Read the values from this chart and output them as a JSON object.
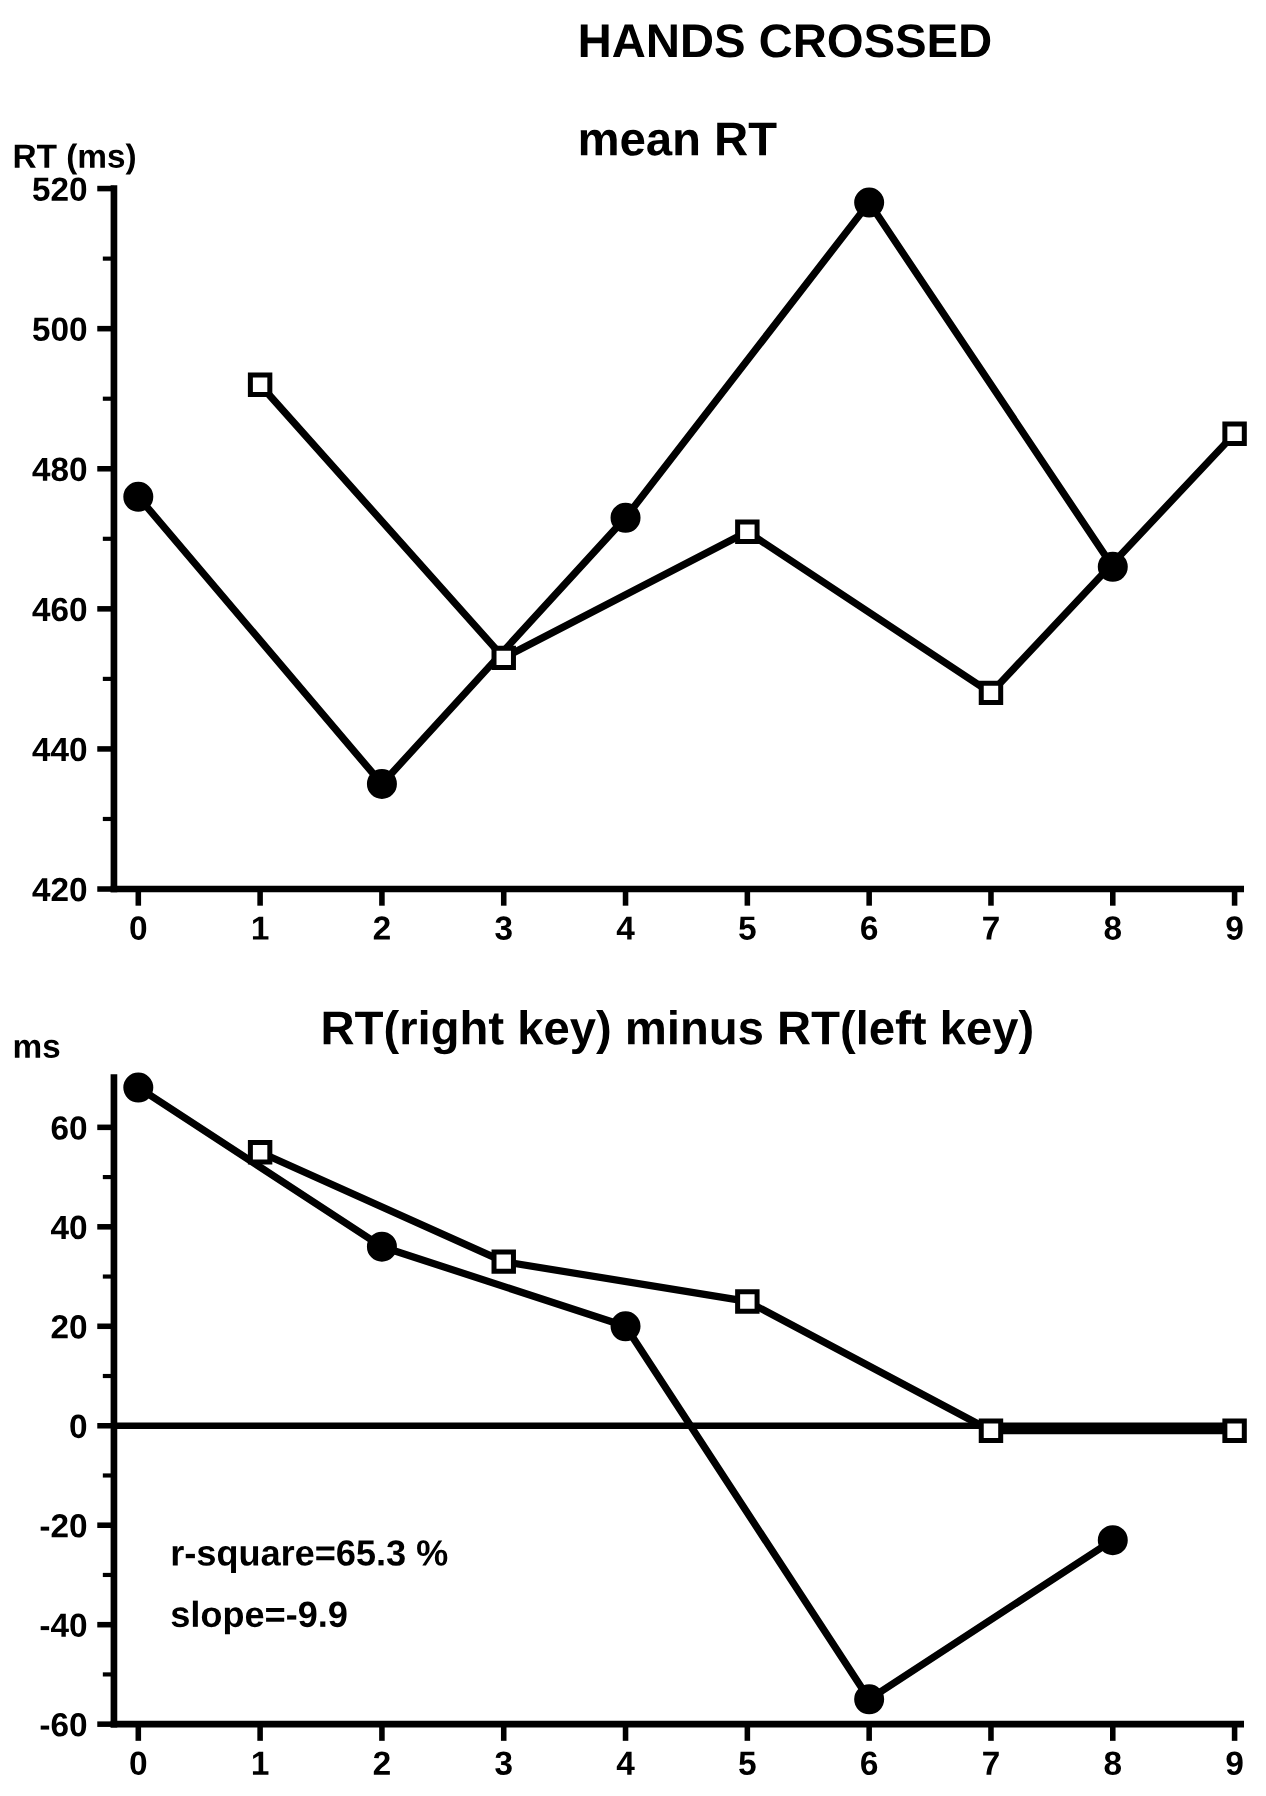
{
  "chart_data": [
    {
      "type": "line",
      "title": "mean RT",
      "ylabel": "RT (ms)",
      "annotations": [
        "HANDS CROSSED"
      ],
      "xlim": [
        -0.2,
        9.05
      ],
      "xticks": [
        0,
        1,
        2,
        3,
        4,
        5,
        6,
        7,
        8,
        9
      ],
      "ylim": [
        420,
        520
      ],
      "yticks": [
        420,
        440,
        460,
        480,
        500,
        520
      ],
      "grid": false,
      "legend": false,
      "series": [
        {
          "color": "#000000",
          "marker": "circle",
          "x": [
            0,
            2,
            4,
            6,
            8
          ],
          "values": [
            476,
            435,
            473,
            518,
            466
          ]
        },
        {
          "color": "#000000",
          "marker": "square",
          "x": [
            1,
            3,
            5,
            7,
            9
          ],
          "values": [
            492,
            453,
            471,
            448,
            485
          ]
        }
      ]
    },
    {
      "type": "line",
      "title": "RT(right key) minus RT(left key)",
      "ylabel": "ms",
      "annotations": [
        "r-square=65.3 %",
        "slope=-9.9"
      ],
      "xlim": [
        -0.2,
        9.05
      ],
      "xticks": [
        0,
        1,
        2,
        3,
        4,
        5,
        6,
        7,
        8,
        9
      ],
      "ylim": [
        -60,
        70
      ],
      "yticks": [
        -60,
        -40,
        -20,
        0,
        20,
        40,
        60
      ],
      "grid": false,
      "legend": false,
      "ref_lines": [
        {
          "axis": "y",
          "value": 0,
          "color": "#000000"
        }
      ],
      "series": [
        {
          "color": "#000000",
          "marker": "circle",
          "x": [
            0,
            2,
            4,
            6,
            8
          ],
          "values": [
            68,
            36,
            20,
            -55,
            -23
          ]
        },
        {
          "color": "#000000",
          "marker": "square",
          "x": [
            1,
            3,
            5,
            7,
            9
          ],
          "values": [
            55,
            33,
            25,
            -1,
            -1
          ]
        }
      ]
    }
  ]
}
